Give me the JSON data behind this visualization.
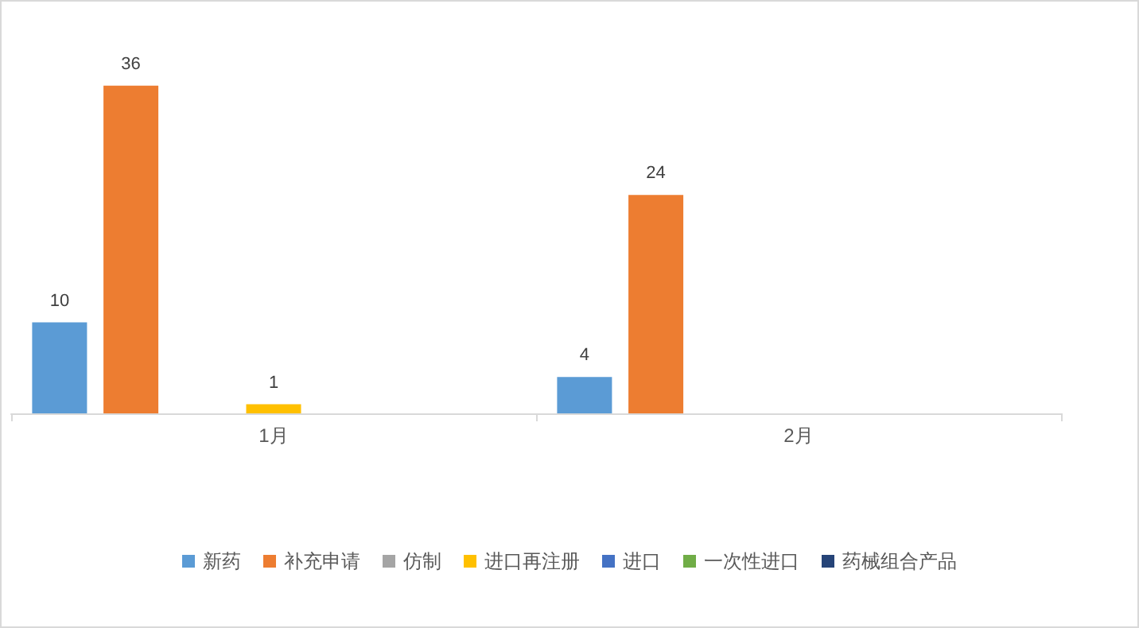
{
  "chart_data": {
    "type": "bar",
    "categories": [
      "1月",
      "2月"
    ],
    "series": [
      {
        "name": "新药",
        "color": "#5b9bd5",
        "values": [
          10,
          4
        ]
      },
      {
        "name": "补充申请",
        "color": "#ed7d31",
        "values": [
          36,
          24
        ]
      },
      {
        "name": "仿制",
        "color": "#a5a5a5",
        "values": [
          null,
          null
        ]
      },
      {
        "name": "进口再注册",
        "color": "#ffc000",
        "values": [
          1,
          null
        ]
      },
      {
        "name": "进口",
        "color": "#4472c4",
        "values": [
          null,
          null
        ]
      },
      {
        "name": "一次性进口",
        "color": "#70ad47",
        "values": [
          null,
          null
        ]
      },
      {
        "name": "药械组合产品",
        "color": "#264478",
        "values": [
          null,
          null
        ]
      }
    ],
    "data_labels": true,
    "legend": "bottom",
    "grid": false
  }
}
